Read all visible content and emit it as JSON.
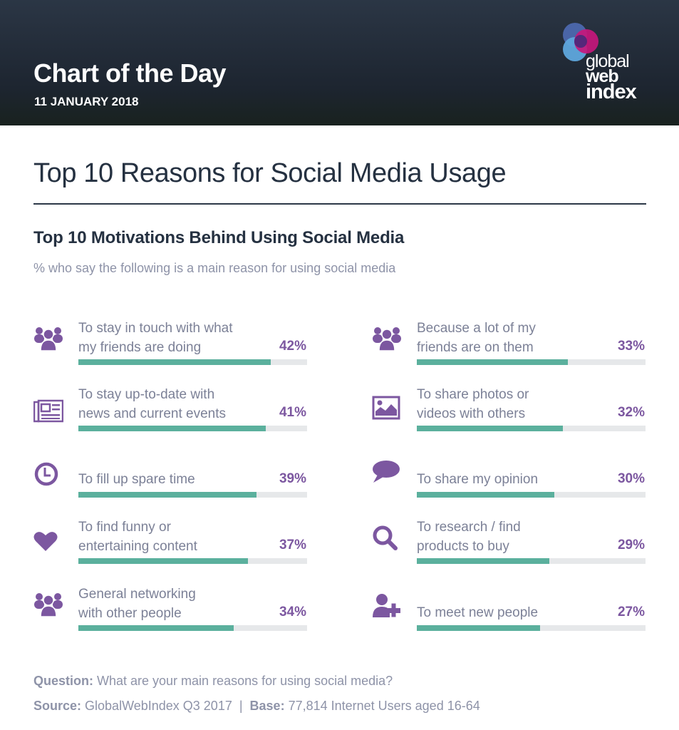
{
  "header": {
    "title": "Chart of the Day",
    "date": "11 JANUARY 2018",
    "logo": {
      "line1": "global",
      "line2": "web",
      "line3": "index"
    }
  },
  "main_title": "Top 10 Reasons for Social Media Usage",
  "chart_title": "Top 10 Motivations Behind Using Social Media",
  "chart_subtitle": "% who say the following is a main reason for using social media",
  "colors": {
    "bar_fill": "#5bb09d",
    "bar_track": "#e6e8ea",
    "accent_purple": "#7c57a0",
    "header_bg": "#222b36",
    "title_text": "#253141",
    "muted_text": "#8e93a8"
  },
  "items": [
    {
      "icon": "group-icon",
      "label_lines": [
        "To stay in touch with what",
        "my friends are doing"
      ],
      "value": 42,
      "value_label": "42%"
    },
    {
      "icon": "newspaper-icon",
      "label_lines": [
        "To stay up-to-date with",
        "news and current events"
      ],
      "value": 41,
      "value_label": "41%"
    },
    {
      "icon": "clock-icon",
      "label_lines": [
        "To fill up spare time"
      ],
      "value": 39,
      "value_label": "39%"
    },
    {
      "icon": "heart-icon",
      "label_lines": [
        "To find funny or",
        "entertaining content"
      ],
      "value": 37,
      "value_label": "37%"
    },
    {
      "icon": "group-icon",
      "label_lines": [
        "General networking",
        "with other people"
      ],
      "value": 34,
      "value_label": "34%"
    },
    {
      "icon": "group-icon",
      "label_lines": [
        "Because a lot of my",
        "friends are on them"
      ],
      "value": 33,
      "value_label": "33%"
    },
    {
      "icon": "image-icon",
      "label_lines": [
        "To share photos or",
        "videos with others"
      ],
      "value": 32,
      "value_label": "32%"
    },
    {
      "icon": "speech-bubble-icon",
      "label_lines": [
        "To share my opinion"
      ],
      "value": 30,
      "value_label": "30%"
    },
    {
      "icon": "search-icon",
      "label_lines": [
        "To research / find",
        "products to buy"
      ],
      "value": 29,
      "value_label": "29%"
    },
    {
      "icon": "add-user-icon",
      "label_lines": [
        "To meet new people"
      ],
      "value": 27,
      "value_label": "27%"
    }
  ],
  "footer": {
    "question_label": "Question:",
    "question_text": " What are your main reasons for using social media?",
    "source_label": "Source:",
    "source_text": " GlobalWebIndex Q3 2017  |  ",
    "base_label": "Base:",
    "base_text": " 77,814 Internet Users aged 16-64"
  },
  "chart_data": {
    "type": "bar",
    "orientation": "horizontal",
    "title": "Top 10 Motivations Behind Using Social Media",
    "subtitle": "% who say the following is a main reason for using social media",
    "categories": [
      "To stay in touch with what my friends are doing",
      "To stay up-to-date with news and current events",
      "To fill up spare time",
      "To find funny or entertaining content",
      "General networking with other people",
      "Because a lot of my friends are on them",
      "To share photos or videos with others",
      "To share my opinion",
      "To research / find products to buy",
      "To meet new people"
    ],
    "values": [
      42,
      41,
      39,
      37,
      34,
      33,
      32,
      30,
      29,
      27
    ],
    "unit": "%",
    "xlim": [
      0,
      50
    ],
    "grid": false,
    "legend": "none",
    "layout": "two columns of five items, data labels right-aligned above bars",
    "source": "GlobalWebIndex Q3 2017",
    "base": "77,814 Internet Users aged 16-64"
  }
}
